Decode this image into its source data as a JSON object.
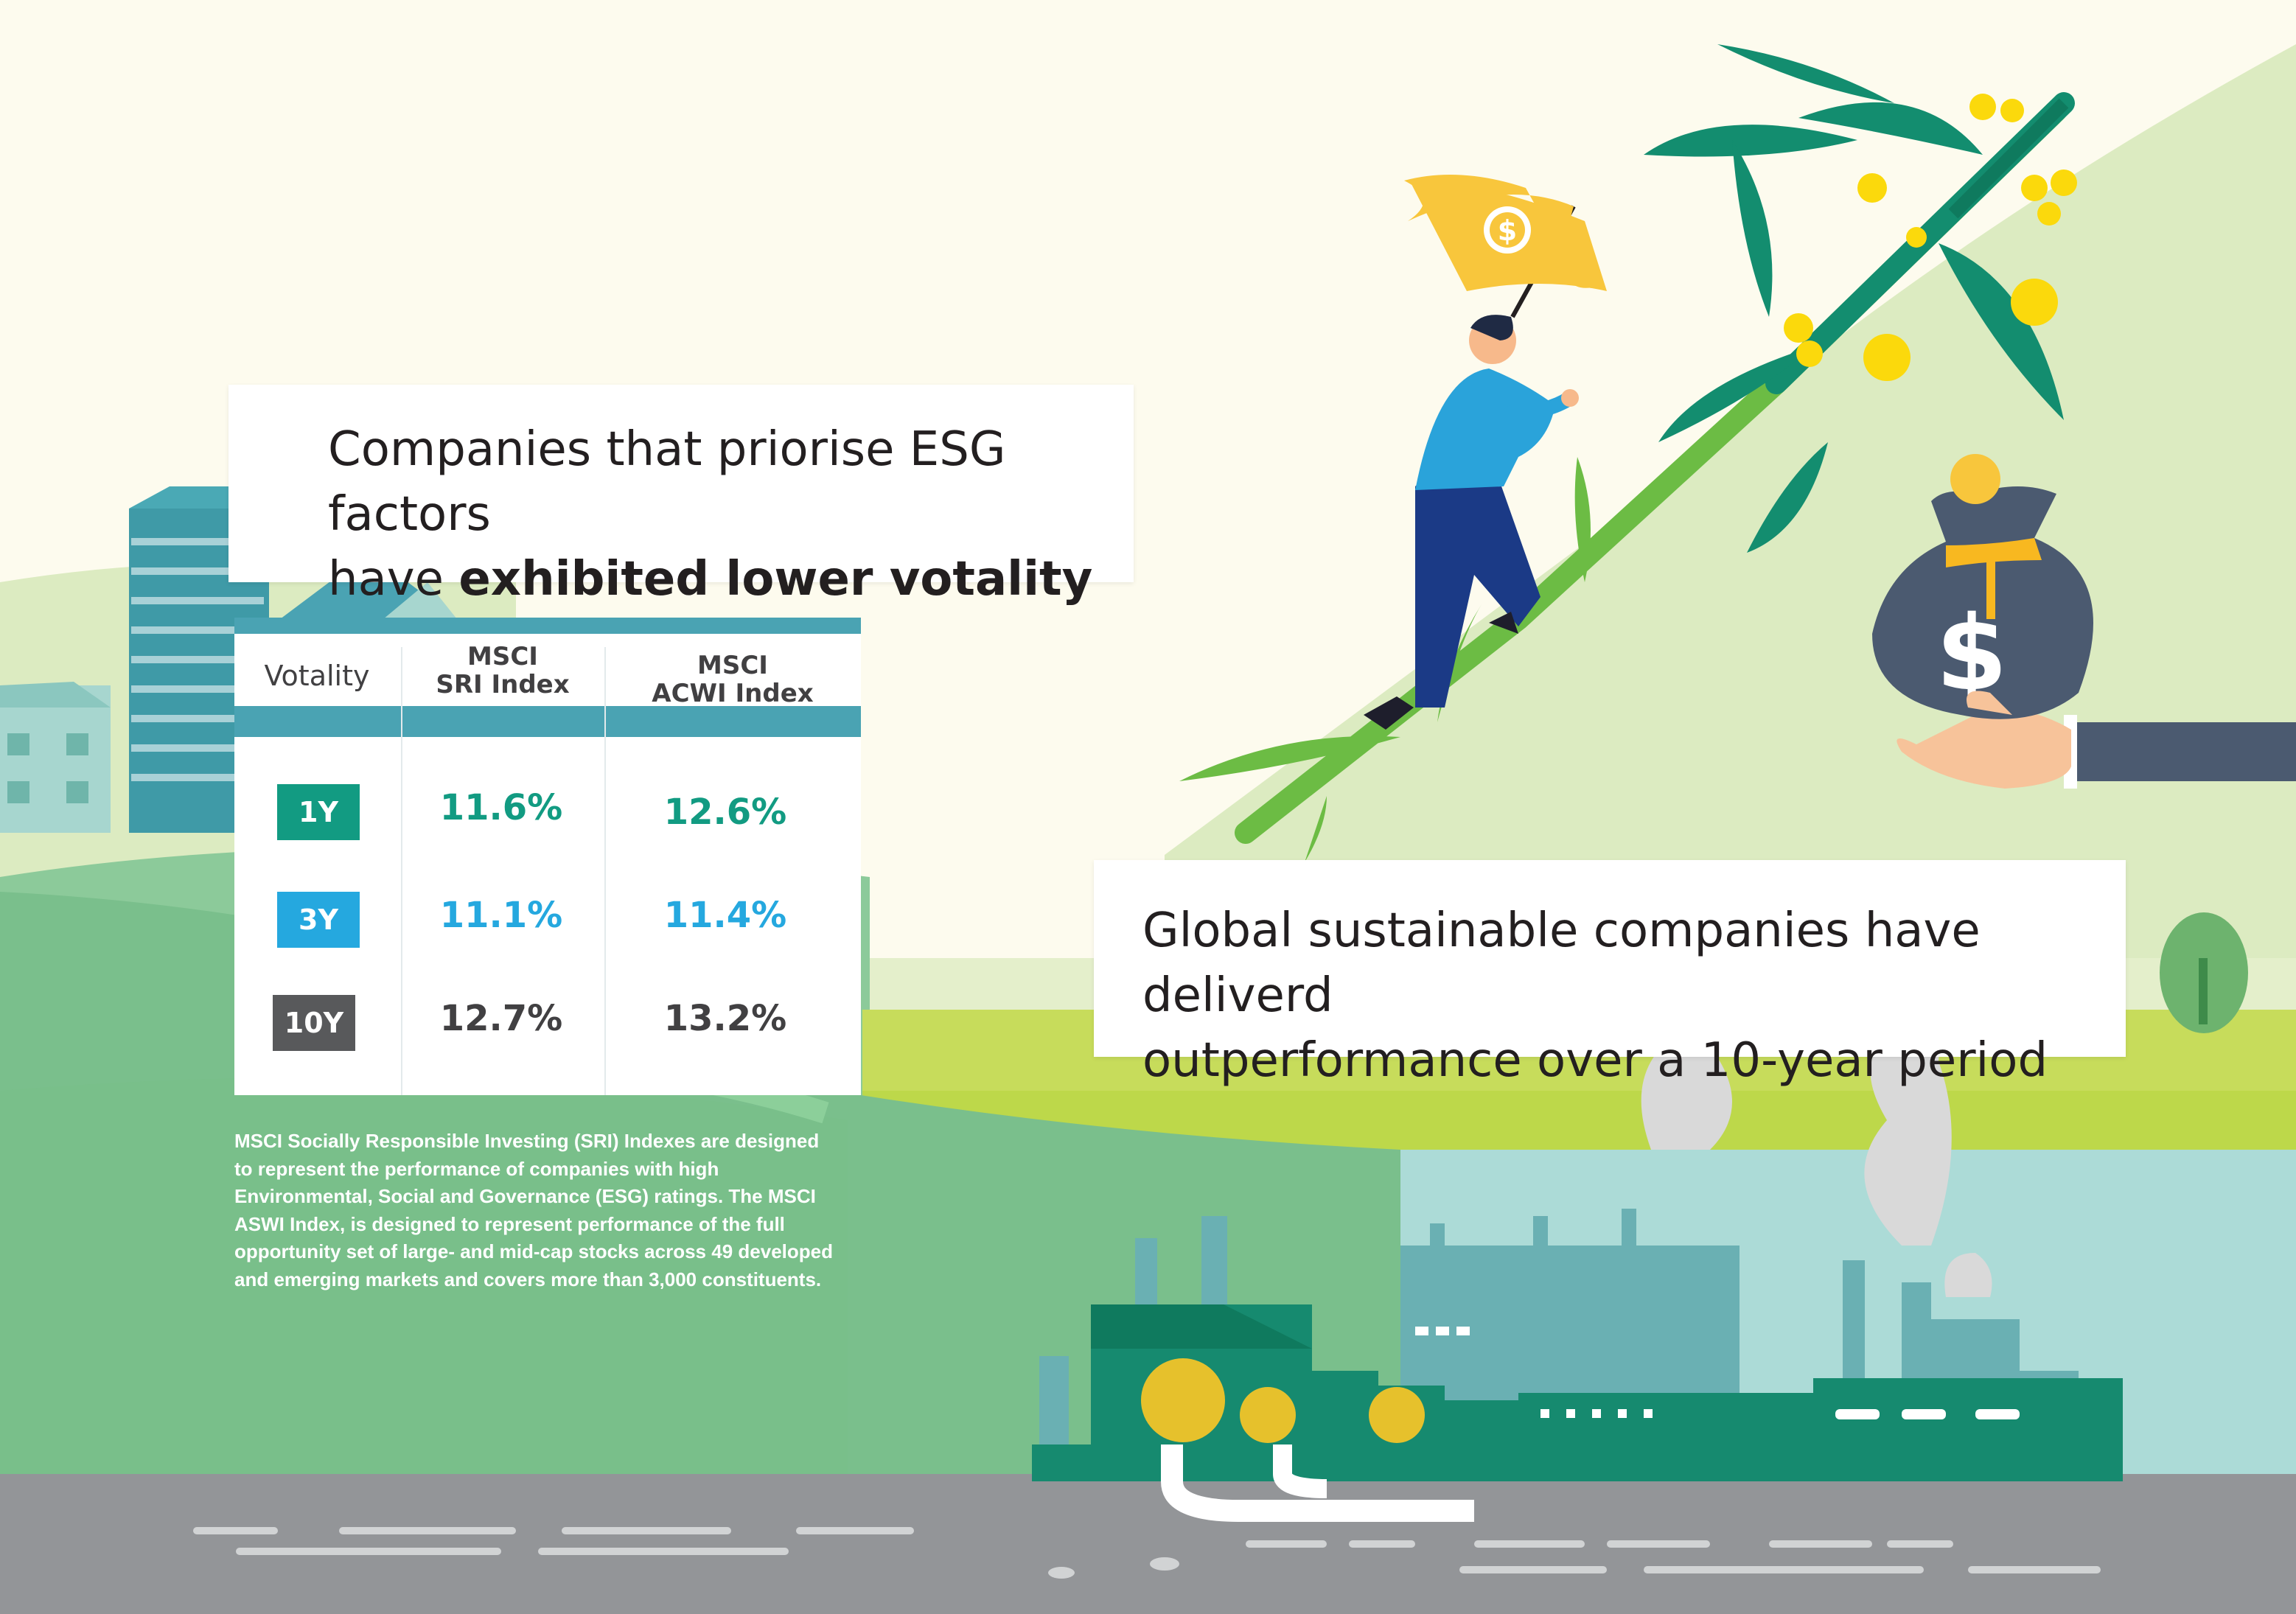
{
  "headline_esg": {
    "line1": "Companies that priorise ESG factors",
    "line2_plain": "have ",
    "line2_bold": "exhibited lower votality"
  },
  "headline_global": {
    "line1": "Global sustainable companies have deliverd",
    "line2": "outperformance over a 10-year period"
  },
  "table": {
    "header": {
      "col0": "Votality",
      "col1_line1": "MSCI",
      "col1_line2": "SRI Index",
      "col2_line1": "MSCI",
      "col2_line2": "ACWI Index"
    },
    "rows": [
      {
        "period": "1Y",
        "sri": "11.6%",
        "acwi": "12.6%",
        "color": "#129b82"
      },
      {
        "period": "3Y",
        "sri": "11.1%",
        "acwi": "11.4%",
        "color": "#25a8df"
      },
      {
        "period": "10Y",
        "sri": "12.7%",
        "acwi": "13.2%",
        "color": "#58595b"
      }
    ]
  },
  "footnote": {
    "lines": [
      "MSCI Socially Responsible Investing (SRI) Indexes are designed",
      "to represent the performance of companies with high",
      "Environmental, Social and Governance (ESG) ratings. The MSCI",
      "ASWI Index, is designed to represent performance of the full",
      "opportunity set of large- and mid-cap stocks across 49 developed",
      "and emerging markets and covers more than 3,000 constituents."
    ]
  },
  "icons": {
    "flag": "dollar-flag-icon",
    "money_bag": "dollar-money-bag-icon"
  },
  "colors": {
    "teal": "#4aa3b3",
    "green": "#129b82",
    "blue": "#25a8df",
    "grey": "#58595b",
    "gold": "#f8c63c"
  }
}
